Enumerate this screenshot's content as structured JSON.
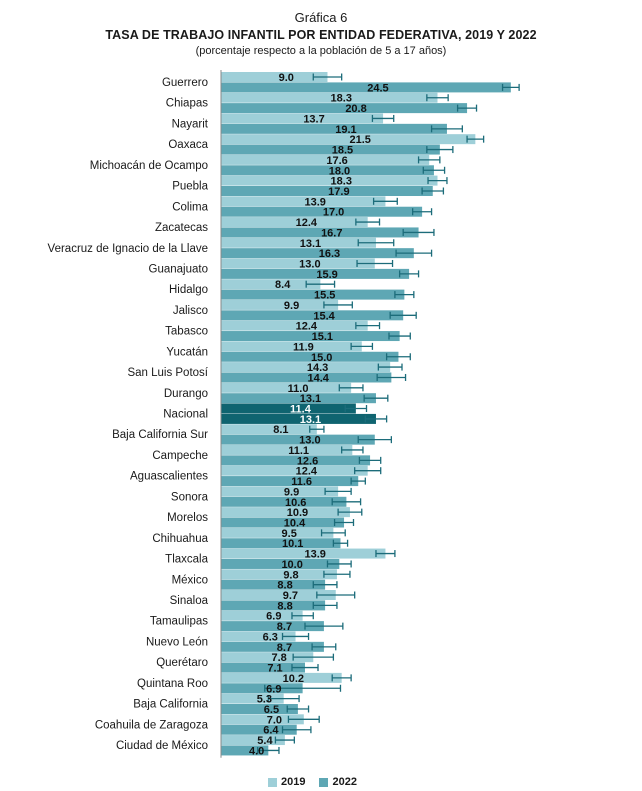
{
  "header": {
    "grafica": "Gráfica 6",
    "title": "TASA DE TRABAJO INFANTIL POR ENTIDAD FEDERATIVA, 2019 Y 2022",
    "subtitle": "(porcentaje respecto a la población de 5 a 17 años)"
  },
  "colors": {
    "s2019": "#9ecfd8",
    "s2022": "#5ea7b4",
    "nacional": "#0f6470",
    "errorbar": "#1c6c7a",
    "axis": "#888888"
  },
  "chart_data": {
    "type": "bar",
    "orientation": "horizontal",
    "xlim": [
      0,
      30
    ],
    "categories": [
      "Guerrero",
      "Chiapas",
      "Nayarit",
      "Oaxaca",
      "Michoacán de Ocampo",
      "Puebla",
      "Colima",
      "Zacatecas",
      "Veracruz de Ignacio de la Llave",
      "Guanajuato",
      "Hidalgo",
      "Jalisco",
      "Tabasco",
      "Yucatán",
      "San Luis Potosí",
      "Durango",
      "Nacional",
      "Baja California Sur",
      "Campeche",
      "Aguascalientes",
      "Sonora",
      "Morelos",
      "Chihuahua",
      "Tlaxcala",
      "México",
      "Sinaloa",
      "Tamaulipas",
      "Nuevo León",
      "Querétaro",
      "Quintana Roo",
      "Baja California",
      "Coahuila de Zaragoza",
      "Ciudad de México"
    ],
    "highlight": "Nacional",
    "series": [
      {
        "name": "2019",
        "values": [
          9.0,
          18.3,
          13.7,
          21.5,
          17.6,
          18.3,
          13.9,
          12.4,
          13.1,
          13.0,
          8.4,
          9.9,
          12.4,
          11.9,
          14.3,
          11.0,
          11.4,
          8.1,
          11.1,
          12.4,
          9.9,
          10.9,
          9.5,
          13.9,
          9.8,
          9.7,
          6.9,
          6.3,
          7.8,
          10.2,
          5.3,
          7.0,
          5.4
        ],
        "error": [
          1.2,
          0.9,
          0.9,
          0.7,
          0.9,
          0.8,
          1.0,
          1.0,
          1.5,
          1.5,
          1.2,
          1.2,
          1.0,
          0.9,
          1.0,
          1.0,
          0.9,
          0.6,
          0.9,
          1.1,
          1.1,
          1.0,
          1.0,
          0.8,
          1.1,
          1.6,
          0.9,
          1.1,
          1.7,
          0.8,
          1.3,
          1.3,
          0.8
        ]
      },
      {
        "name": "2022",
        "values": [
          24.5,
          20.8,
          19.1,
          18.5,
          18.0,
          17.9,
          17.0,
          16.7,
          16.3,
          15.9,
          15.5,
          15.4,
          15.1,
          15.0,
          14.4,
          13.1,
          13.1,
          13.0,
          12.6,
          11.6,
          10.6,
          10.4,
          10.1,
          10.0,
          8.8,
          8.8,
          8.7,
          8.7,
          7.1,
          6.9,
          6.5,
          6.4,
          4.0
        ]
      },
      {
        "name": "2022_error",
        "values": [
          0.7,
          0.8,
          1.3,
          1.1,
          0.9,
          0.9,
          0.8,
          1.3,
          1.5,
          0.8,
          0.8,
          1.1,
          0.9,
          1.0,
          1.2,
          1.0,
          0.9,
          1.4,
          0.9,
          0.6,
          1.2,
          0.8,
          0.6,
          1.0,
          1.0,
          1.0,
          1.6,
          1.0,
          1.1,
          3.2,
          0.9,
          1.2,
          0.9
        ]
      }
    ]
  },
  "legend": {
    "label_2019": "2019",
    "label_2022": "2022"
  }
}
